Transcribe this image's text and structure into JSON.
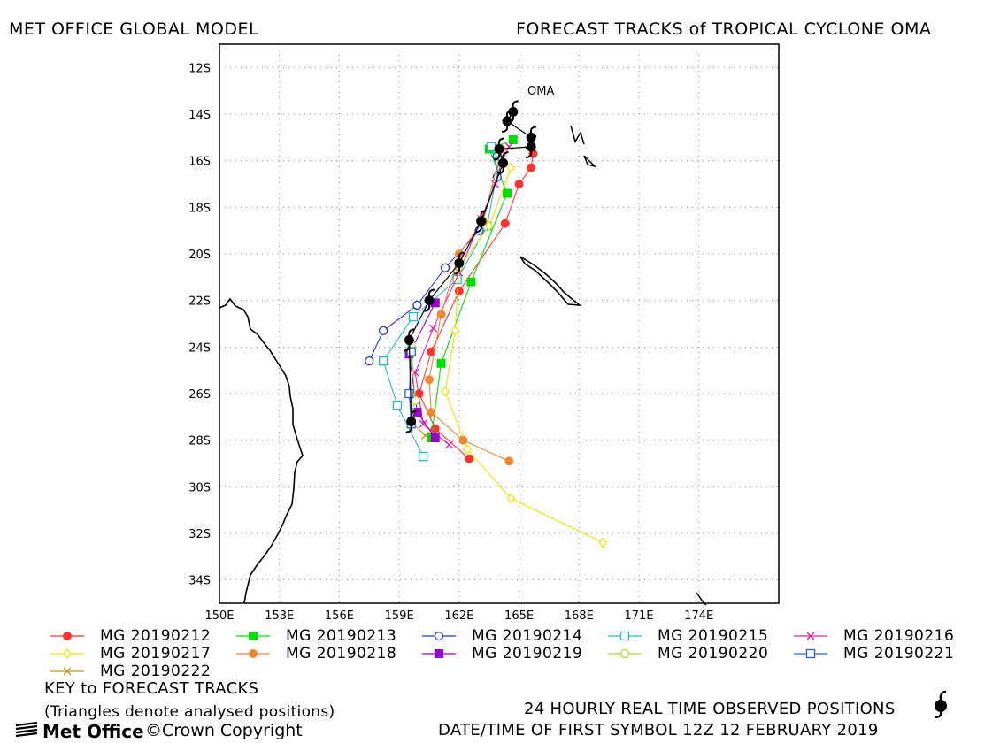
{
  "header": {
    "left": "MET OFFICE GLOBAL MODEL",
    "right": "FORECAST TRACKS of TROPICAL CYCLONE OMA"
  },
  "footer": {
    "key_title": "KEY to FORECAST TRACKS",
    "triangles_note": "(Triangles denote analysed positions)",
    "observed_note": "24 HOURLY REAL TIME OBSERVED POSITIONS",
    "datetime_note": "DATE/TIME OF FIRST SYMBOL 12Z 12 FEBRUARY 2019",
    "logo_text": "Met Office",
    "copyright": "©Crown Copyright"
  },
  "chart_data": {
    "type": "line",
    "title": "FORECAST TRACKS of TROPICAL CYCLONE OMA",
    "storm_label": "OMA",
    "xlim": [
      150,
      178
    ],
    "ylim": [
      -35,
      -11
    ],
    "x_ticks": [
      150,
      153,
      156,
      159,
      162,
      165,
      168,
      171,
      174
    ],
    "x_tick_labels": [
      "150E",
      "153E",
      "156E",
      "159E",
      "162E",
      "165E",
      "168E",
      "171E",
      "174E"
    ],
    "y_ticks": [
      -12,
      -14,
      -16,
      -18,
      -20,
      -22,
      -24,
      -26,
      -28,
      -30,
      -32,
      -34
    ],
    "y_tick_labels": [
      "12S",
      "14S",
      "16S",
      "18S",
      "20S",
      "22S",
      "24S",
      "26S",
      "28S",
      "30S",
      "32S",
      "34S"
    ],
    "grid": true,
    "observed_track": {
      "name": "24 HOURLY REAL TIME OBSERVED POSITIONS",
      "points": [
        [
          164.7,
          -13.9
        ],
        [
          164.4,
          -14.3
        ],
        [
          165.6,
          -15.0
        ],
        [
          165.6,
          -15.4
        ],
        [
          164.0,
          -15.5
        ],
        [
          164.2,
          -16.1
        ],
        [
          163.1,
          -18.6
        ],
        [
          162.0,
          -20.4
        ],
        [
          160.5,
          -22.0
        ],
        [
          159.5,
          -23.7
        ],
        [
          159.6,
          -27.2
        ]
      ]
    },
    "series": [
      {
        "name": "MG 20190212",
        "color": "#ff3333",
        "marker": "circle-filled",
        "points": [
          [
            165.7,
            -15.7
          ],
          [
            165.6,
            -16.3
          ],
          [
            165.0,
            -17.0
          ],
          [
            164.3,
            -18.7
          ],
          [
            162.0,
            -21.6
          ],
          [
            160.6,
            -24.2
          ],
          [
            160.0,
            -26.0
          ],
          [
            160.8,
            -27.5
          ],
          [
            162.5,
            -28.8
          ]
        ]
      },
      {
        "name": "MG 20190213",
        "color": "#00dd00",
        "marker": "square-filled",
        "points": [
          [
            164.7,
            -15.1
          ],
          [
            163.5,
            -15.5
          ],
          [
            164.4,
            -17.4
          ],
          [
            162.6,
            -21.2
          ],
          [
            161.1,
            -24.7
          ],
          [
            160.6,
            -27.9
          ]
        ]
      },
      {
        "name": "MG 20190214",
        "color": "#2233cc",
        "marker": "circle-open",
        "points": [
          [
            163.9,
            -15.8
          ],
          [
            163.9,
            -16.7
          ],
          [
            163.0,
            -19.0
          ],
          [
            161.3,
            -20.6
          ],
          [
            159.9,
            -22.2
          ],
          [
            158.2,
            -23.3
          ],
          [
            157.5,
            -24.6
          ]
        ]
      },
      {
        "name": "MG 20190215",
        "color": "#22bbcc",
        "marker": "square-open",
        "points": [
          [
            163.6,
            -15.4
          ],
          [
            164.0,
            -16.0
          ],
          [
            163.4,
            -18.8
          ],
          [
            161.9,
            -21.1
          ],
          [
            159.7,
            -22.7
          ],
          [
            158.2,
            -24.6
          ],
          [
            158.9,
            -26.5
          ],
          [
            160.2,
            -28.7
          ]
        ]
      },
      {
        "name": "MG 20190216",
        "color": "#dd22aa",
        "marker": "x",
        "points": [
          [
            164.5,
            -15.4
          ],
          [
            164.1,
            -16.1
          ],
          [
            163.8,
            -17.0
          ],
          [
            163.1,
            -18.5
          ],
          [
            162.0,
            -20.8
          ],
          [
            160.7,
            -23.2
          ],
          [
            159.8,
            -25.1
          ],
          [
            160.2,
            -27.3
          ],
          [
            161.5,
            -28.2
          ]
        ]
      },
      {
        "name": "MG 20190217",
        "color": "#f0e000",
        "marker": "diamond-open",
        "points": [
          [
            164.6,
            -16.3
          ],
          [
            163.5,
            -18.8
          ],
          [
            162.0,
            -20.6
          ],
          [
            161.8,
            -23.3
          ],
          [
            161.3,
            -25.9
          ],
          [
            162.4,
            -28.4
          ],
          [
            164.6,
            -30.5
          ],
          [
            169.2,
            -32.4
          ]
        ]
      },
      {
        "name": "MG 20190218",
        "color": "#ee8833",
        "marker": "circle-filled",
        "points": [
          [
            164.1,
            -15.5
          ],
          [
            163.2,
            -18.6
          ],
          [
            162.0,
            -20.0
          ],
          [
            161.1,
            -22.6
          ],
          [
            160.5,
            -25.4
          ],
          [
            160.6,
            -26.8
          ],
          [
            162.2,
            -28.0
          ],
          [
            164.5,
            -28.9
          ]
        ]
      },
      {
        "name": "MG 20190219",
        "color": "#9900cc",
        "marker": "square-filled",
        "points": [
          [
            160.8,
            -22.1
          ],
          [
            159.5,
            -24.3
          ],
          [
            159.9,
            -26.8
          ],
          [
            160.8,
            -27.9
          ]
        ]
      },
      {
        "name": "MG 20190220",
        "color": "#aadd33",
        "marker": "circle-open",
        "points": [
          [
            159.6,
            -23.9
          ],
          [
            159.8,
            -26.3
          ],
          [
            159.6,
            -27.2
          ]
        ]
      },
      {
        "name": "MG 20190221",
        "color": "#2266cc",
        "marker": "square-open",
        "points": [
          [
            159.6,
            -24.2
          ],
          [
            159.5,
            -26.0
          ],
          [
            159.6,
            -27.3
          ]
        ]
      },
      {
        "name": "MG 20190222",
        "color": "#bb9922",
        "marker": "x",
        "points": [
          [
            159.6,
            -27.2
          ],
          [
            160.3,
            -27.8
          ]
        ]
      }
    ]
  }
}
